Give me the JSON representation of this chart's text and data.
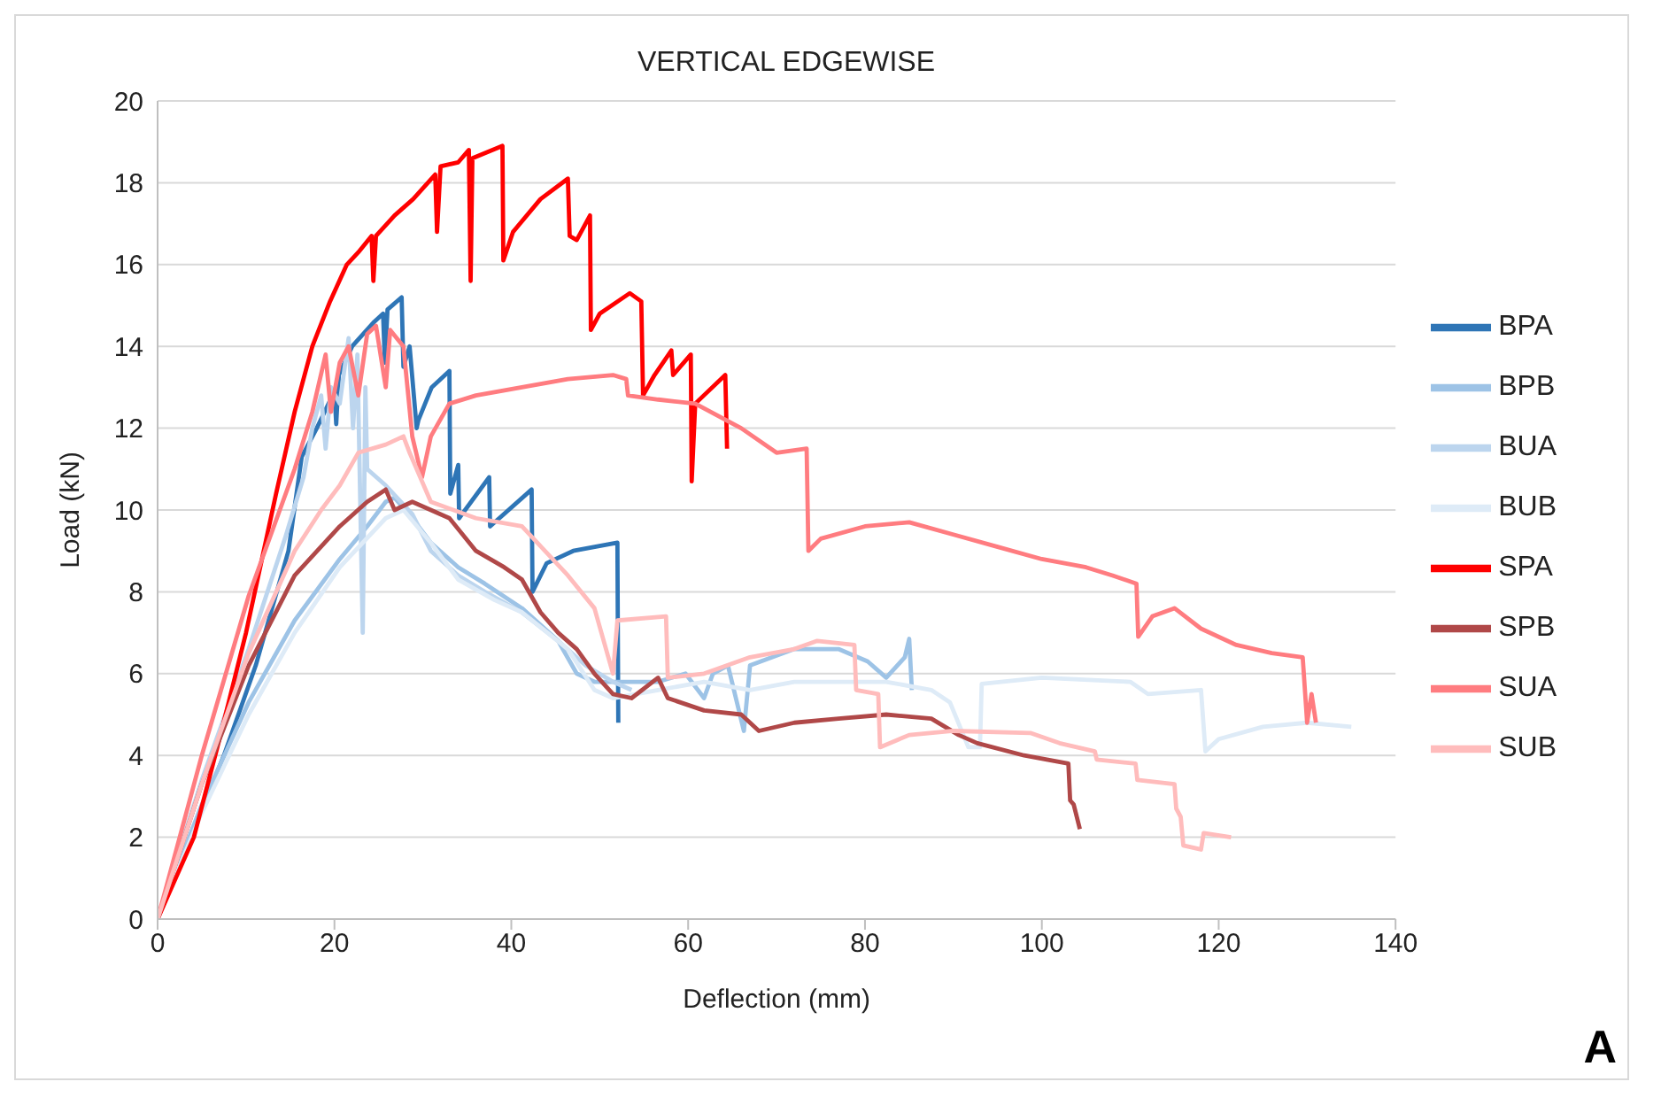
{
  "chart_data": {
    "type": "line",
    "title": "VERTICAL EDGEWISE",
    "xlabel": "Deflection (mm)",
    "ylabel": "Load (kN)",
    "xlim": [
      0,
      140
    ],
    "xticks": [
      0,
      20,
      40,
      60,
      80,
      100,
      120,
      140
    ],
    "ylim": [
      0,
      20
    ],
    "yticks": [
      0,
      2,
      4,
      6,
      8,
      10,
      12,
      14,
      16,
      18,
      20
    ],
    "grid": "y",
    "legend": "right",
    "annotations": [
      "A"
    ],
    "series": [
      {
        "name": "BPA",
        "color": "#2e75b6",
        "x": [
          0,
          7.5,
          11.1,
          14.8,
          16.3,
          18,
          20,
          20.2,
          20.5,
          22,
          24.5,
          25.5,
          25.7,
          26,
          27.6,
          27.8,
          28.5,
          29.3,
          29.5,
          31,
          33,
          33.1,
          34,
          34.1,
          37.5,
          37.6,
          42.3,
          42.4,
          44,
          47,
          52,
          52.1
        ],
        "values": [
          0,
          4.0,
          6.2,
          9.0,
          11.3,
          12.0,
          12.9,
          12.1,
          13.3,
          14.0,
          14.6,
          14.8,
          13.6,
          14.9,
          15.2,
          13.5,
          14.0,
          12.0,
          12.2,
          13.0,
          13.4,
          10.4,
          11.1,
          9.8,
          10.8,
          9.6,
          10.5,
          8.0,
          8.7,
          9.0,
          9.2,
          4.8
        ]
      },
      {
        "name": "BPB",
        "color": "#9dc3e6",
        "x": [
          0,
          5,
          10.3,
          15.5,
          20.6,
          23.7,
          25.8,
          26.8,
          28.8,
          30.9,
          34,
          37,
          41.2,
          45.3,
          47.4,
          49.4,
          51.5,
          56.6,
          59.7,
          61.8,
          62.8,
          64.5,
          66.3,
          67,
          72,
          77,
          80.3,
          82.4,
          84.5,
          85,
          85.3
        ],
        "values": [
          0,
          2.8,
          5.3,
          7.3,
          8.8,
          9.6,
          10.2,
          10.3,
          9.8,
          9.2,
          8.6,
          8.2,
          7.6,
          6.8,
          6.0,
          5.8,
          5.8,
          5.8,
          6.0,
          5.4,
          6.0,
          6.2,
          4.6,
          6.2,
          6.6,
          6.6,
          6.3,
          5.9,
          6.4,
          6.85,
          5.6
        ]
      },
      {
        "name": "BUA",
        "color": "#bcd5ee",
        "x": [
          0,
          5,
          10.3,
          14.4,
          16.5,
          17.5,
          18.5,
          19,
          19.6,
          20.6,
          21.6,
          22.1,
          22.6,
          23.2,
          23.5,
          23.7,
          25.8,
          28.8,
          30.9,
          34,
          37,
          41.2,
          45.3,
          48.4,
          51.5,
          53.6
        ],
        "values": [
          0,
          3.4,
          6.6,
          9.3,
          10.8,
          12.0,
          12.8,
          11.5,
          13.0,
          12.6,
          14.2,
          12.0,
          13.8,
          7.0,
          13.0,
          11.0,
          10.6,
          9.9,
          9.0,
          8.4,
          8.0,
          7.5,
          6.8,
          6.2,
          5.8,
          5.6
        ]
      },
      {
        "name": "BUB",
        "color": "#deebf7",
        "x": [
          0,
          5,
          10.3,
          15.5,
          20.6,
          25.8,
          27.8,
          30.9,
          34,
          38.1,
          41.2,
          46.4,
          49.4,
          51.5,
          56.6,
          61.8,
          67,
          72,
          77,
          82.4,
          87.5,
          89.6,
          91.7,
          93,
          93.2,
          100,
          110,
          112,
          118,
          118.5,
          120,
          125,
          130,
          135
        ],
        "values": [
          0,
          2.6,
          5.0,
          7.0,
          8.6,
          9.8,
          10.0,
          9.2,
          8.3,
          7.8,
          7.5,
          6.6,
          5.6,
          5.4,
          5.6,
          5.8,
          5.6,
          5.8,
          5.8,
          5.8,
          5.6,
          5.3,
          4.2,
          4.2,
          5.75,
          5.9,
          5.8,
          5.5,
          5.6,
          4.1,
          4.4,
          4.7,
          4.8,
          4.7
        ]
      },
      {
        "name": "SPA",
        "color": "#ff0000",
        "x": [
          0,
          4.1,
          7,
          10,
          13.4,
          15.5,
          17.5,
          19.5,
          21.4,
          22.7,
          24.2,
          24.4,
          24.7,
          26.8,
          28.9,
          31.4,
          31.6,
          32,
          34,
          35.2,
          35.4,
          35.6,
          39,
          39.1,
          40.2,
          43.3,
          46.4,
          46.6,
          47.4,
          48.9,
          49,
          50,
          53.4,
          54.7,
          54.9,
          56.2,
          58.1,
          58.3,
          60.3,
          60.4,
          60.8,
          64.2,
          64.4
        ],
        "values": [
          0,
          2.0,
          4.4,
          7.0,
          10.4,
          12.4,
          14.0,
          15.1,
          16.0,
          16.3,
          16.7,
          15.6,
          16.7,
          17.2,
          17.6,
          18.2,
          16.8,
          18.4,
          18.5,
          18.8,
          15.6,
          18.6,
          18.9,
          16.1,
          16.8,
          17.6,
          18.1,
          16.7,
          16.6,
          17.2,
          14.4,
          14.8,
          15.3,
          15.1,
          12.8,
          13.3,
          13.9,
          13.3,
          13.8,
          10.7,
          12.6,
          13.3,
          11.5
        ]
      },
      {
        "name": "SPB",
        "color": "#b04848",
        "x": [
          0,
          5,
          10.3,
          15.5,
          20.6,
          23.7,
          25.8,
          26.8,
          28.8,
          30.9,
          33,
          36,
          39.2,
          41.2,
          43.3,
          45.3,
          47.4,
          49.4,
          51.5,
          53.6,
          56.6,
          57.7,
          61.8,
          66,
          68,
          72,
          77,
          82.4,
          87.5,
          90.6,
          92.7,
          98,
          103,
          103.2,
          103.6,
          104.3
        ],
        "values": [
          0,
          3.3,
          6.2,
          8.4,
          9.6,
          10.2,
          10.5,
          10.0,
          10.2,
          10.0,
          9.8,
          9.0,
          8.6,
          8.3,
          7.5,
          7.0,
          6.6,
          6.0,
          5.5,
          5.4,
          5.9,
          5.4,
          5.1,
          5.0,
          4.6,
          4.8,
          4.9,
          5.0,
          4.9,
          4.5,
          4.3,
          4.0,
          3.8,
          2.9,
          2.8,
          2.2
        ]
      },
      {
        "name": "SUA",
        "color": "#ff7c80",
        "x": [
          0,
          5,
          10.3,
          15.5,
          17.5,
          19,
          19.6,
          20.6,
          21.6,
          22.7,
          23.7,
          24.7,
          25.8,
          26.3,
          27.8,
          28.8,
          29.9,
          30.9,
          33,
          36,
          41.2,
          46.4,
          51.5,
          53,
          53.2,
          56.6,
          60.8,
          66,
          70,
          73.4,
          73.6,
          75,
          80,
          85,
          90,
          95,
          100,
          105,
          108,
          110.7,
          110.9,
          112.5,
          115,
          118,
          122,
          126,
          129.5,
          130,
          130.5,
          131
        ],
        "values": [
          0,
          4.0,
          7.9,
          11.0,
          12.4,
          13.8,
          12.4,
          13.6,
          14.0,
          12.8,
          14.3,
          14.5,
          13.0,
          14.4,
          14.0,
          11.8,
          10.8,
          11.8,
          12.6,
          12.8,
          13.0,
          13.2,
          13.3,
          13.2,
          12.8,
          12.7,
          12.6,
          12.0,
          11.4,
          11.5,
          9.0,
          9.3,
          9.6,
          9.7,
          9.4,
          9.1,
          8.8,
          8.6,
          8.4,
          8.2,
          6.9,
          7.4,
          7.6,
          7.1,
          6.7,
          6.5,
          6.4,
          4.8,
          5.5,
          4.8
        ]
      },
      {
        "name": "SUB",
        "color": "#ffbcbc",
        "x": [
          0,
          5,
          10.3,
          15.5,
          18.5,
          20.6,
          22.7,
          25.8,
          27.8,
          28.5,
          30.9,
          36,
          41.2,
          46.4,
          49.4,
          51.5,
          52,
          57.5,
          57.7,
          61.8,
          67,
          72,
          74.6,
          78.8,
          79,
          81.5,
          81.7,
          85,
          90,
          98.7,
          102,
          106,
          106.2,
          110.6,
          110.8,
          115,
          115.2,
          115.7,
          116,
          118,
          118.3,
          121.4
        ],
        "values": [
          0,
          3.3,
          6.5,
          9.0,
          10.0,
          10.6,
          11.4,
          11.6,
          11.8,
          11.4,
          10.2,
          9.8,
          9.6,
          8.4,
          7.6,
          6.0,
          7.3,
          7.4,
          5.9,
          6.0,
          6.4,
          6.6,
          6.8,
          6.7,
          5.6,
          5.5,
          4.2,
          4.5,
          4.6,
          4.55,
          4.3,
          4.1,
          3.9,
          3.8,
          3.4,
          3.3,
          2.7,
          2.5,
          1.8,
          1.7,
          2.1,
          2.0
        ]
      }
    ]
  }
}
